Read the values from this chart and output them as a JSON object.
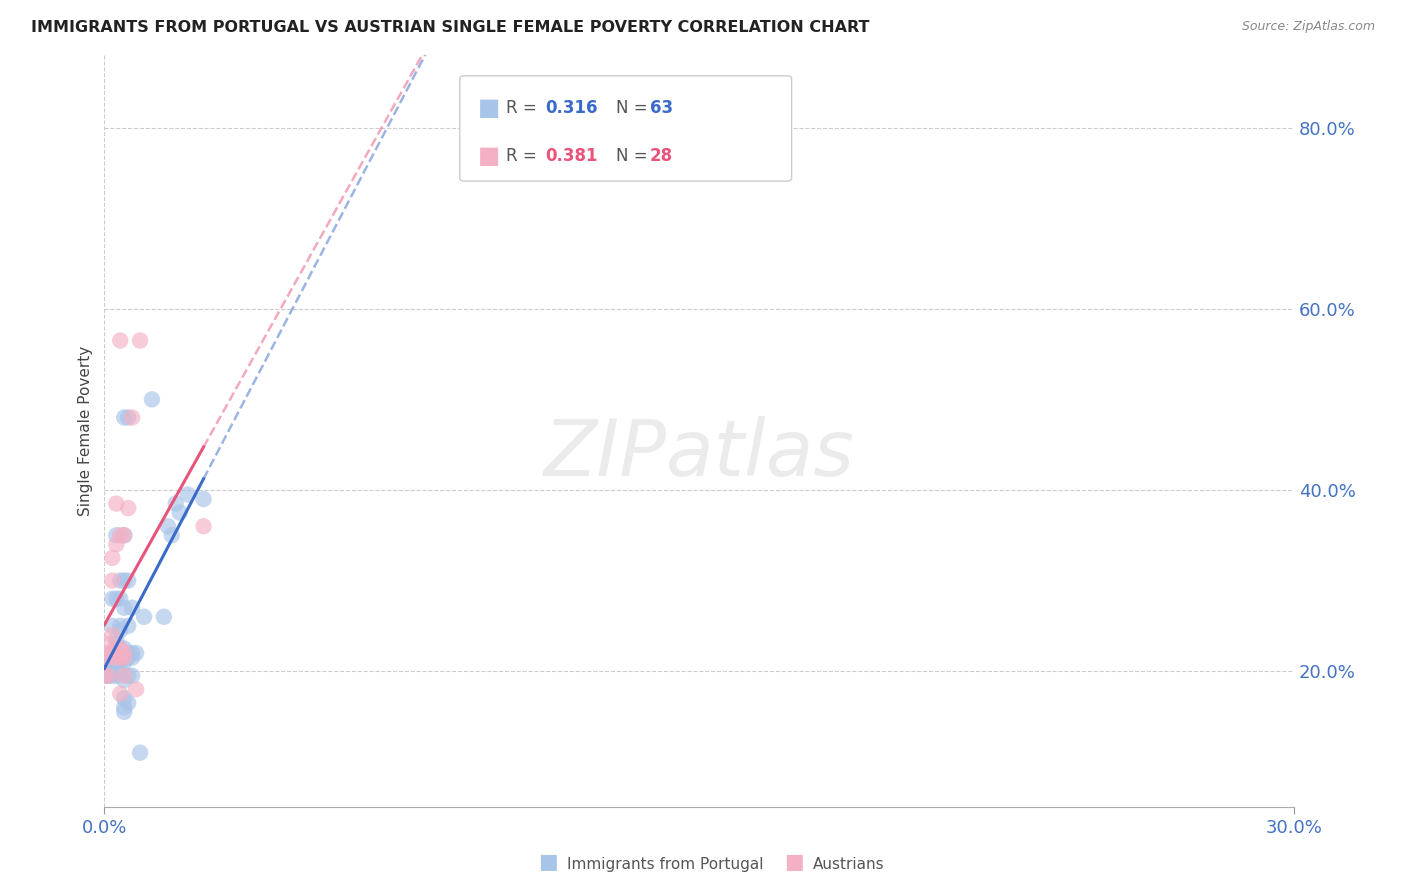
{
  "title": "IMMIGRANTS FROM PORTUGAL VS AUSTRIAN SINGLE FEMALE POVERTY CORRELATION CHART",
  "source": "Source: ZipAtlas.com",
  "ylabel": "Single Female Poverty",
  "yticks": [
    0.2,
    0.4,
    0.6,
    0.8
  ],
  "ytick_labels": [
    "20.0%",
    "40.0%",
    "60.0%",
    "80.0%"
  ],
  "xlim": [
    0.0,
    0.3
  ],
  "ylim": [
    0.05,
    0.88
  ],
  "xtick_left": "0.0%",
  "xtick_right": "30.0%",
  "legend_blue_r": "0.316",
  "legend_blue_n": "63",
  "legend_pink_r": "0.381",
  "legend_pink_n": "28",
  "legend_label_blue": "Immigrants from Portugal",
  "legend_label_pink": "Austrians",
  "blue_fill": "#a8c4e8",
  "pink_fill": "#f4b0c4",
  "blue_line": "#3a6bc8",
  "pink_line": "#e8547a",
  "watermark": "ZIPatlas",
  "blue_scatter": [
    [
      0.0,
      0.195
    ],
    [
      0.001,
      0.195
    ],
    [
      0.001,
      0.2
    ],
    [
      0.001,
      0.195
    ],
    [
      0.001,
      0.21
    ],
    [
      0.001,
      0.215
    ],
    [
      0.002,
      0.195
    ],
    [
      0.002,
      0.21
    ],
    [
      0.002,
      0.215
    ],
    [
      0.002,
      0.22
    ],
    [
      0.002,
      0.25
    ],
    [
      0.002,
      0.28
    ],
    [
      0.003,
      0.195
    ],
    [
      0.003,
      0.21
    ],
    [
      0.003,
      0.22
    ],
    [
      0.003,
      0.225
    ],
    [
      0.003,
      0.23
    ],
    [
      0.003,
      0.235
    ],
    [
      0.003,
      0.28
    ],
    [
      0.003,
      0.35
    ],
    [
      0.004,
      0.2
    ],
    [
      0.004,
      0.21
    ],
    [
      0.004,
      0.215
    ],
    [
      0.004,
      0.22
    ],
    [
      0.004,
      0.225
    ],
    [
      0.004,
      0.245
    ],
    [
      0.004,
      0.25
    ],
    [
      0.004,
      0.28
    ],
    [
      0.004,
      0.3
    ],
    [
      0.005,
      0.155
    ],
    [
      0.005,
      0.16
    ],
    [
      0.005,
      0.17
    ],
    [
      0.005,
      0.19
    ],
    [
      0.005,
      0.21
    ],
    [
      0.005,
      0.215
    ],
    [
      0.005,
      0.22
    ],
    [
      0.005,
      0.225
    ],
    [
      0.005,
      0.27
    ],
    [
      0.005,
      0.3
    ],
    [
      0.005,
      0.35
    ],
    [
      0.005,
      0.48
    ],
    [
      0.006,
      0.165
    ],
    [
      0.006,
      0.195
    ],
    [
      0.006,
      0.215
    ],
    [
      0.006,
      0.22
    ],
    [
      0.006,
      0.25
    ],
    [
      0.006,
      0.3
    ],
    [
      0.006,
      0.48
    ],
    [
      0.007,
      0.195
    ],
    [
      0.007,
      0.215
    ],
    [
      0.007,
      0.22
    ],
    [
      0.007,
      0.27
    ],
    [
      0.008,
      0.22
    ],
    [
      0.009,
      0.11
    ],
    [
      0.01,
      0.26
    ],
    [
      0.012,
      0.5
    ],
    [
      0.015,
      0.26
    ],
    [
      0.016,
      0.36
    ],
    [
      0.017,
      0.35
    ],
    [
      0.018,
      0.385
    ],
    [
      0.019,
      0.375
    ],
    [
      0.021,
      0.395
    ],
    [
      0.025,
      0.39
    ]
  ],
  "pink_scatter": [
    [
      0.0,
      0.195
    ],
    [
      0.001,
      0.195
    ],
    [
      0.001,
      0.215
    ],
    [
      0.001,
      0.22
    ],
    [
      0.001,
      0.23
    ],
    [
      0.002,
      0.22
    ],
    [
      0.002,
      0.24
    ],
    [
      0.002,
      0.3
    ],
    [
      0.002,
      0.325
    ],
    [
      0.003,
      0.215
    ],
    [
      0.003,
      0.225
    ],
    [
      0.003,
      0.34
    ],
    [
      0.003,
      0.385
    ],
    [
      0.004,
      0.175
    ],
    [
      0.004,
      0.215
    ],
    [
      0.004,
      0.22
    ],
    [
      0.004,
      0.225
    ],
    [
      0.004,
      0.35
    ],
    [
      0.004,
      0.565
    ],
    [
      0.005,
      0.195
    ],
    [
      0.005,
      0.215
    ],
    [
      0.005,
      0.22
    ],
    [
      0.005,
      0.35
    ],
    [
      0.006,
      0.38
    ],
    [
      0.007,
      0.48
    ],
    [
      0.008,
      0.18
    ],
    [
      0.009,
      0.565
    ],
    [
      0.025,
      0.36
    ]
  ]
}
